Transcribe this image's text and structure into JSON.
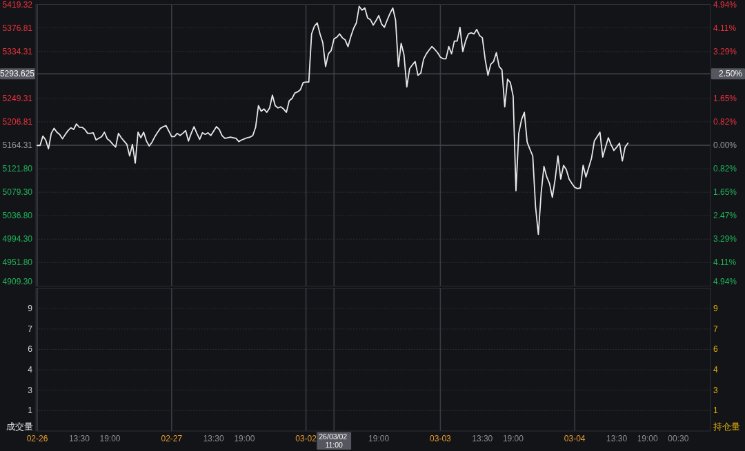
{
  "chart_data": [
    {
      "type": "line",
      "ylim": [
        4909.3,
        5419.32
      ],
      "y2lim": [
        -4.94,
        4.94
      ],
      "tick_labels": "y",
      "grid": "y",
      "categories": [
        "02-26",
        null,
        null,
        null,
        null,
        null,
        null,
        null,
        null,
        null,
        null,
        null,
        null,
        null,
        null,
        null,
        null,
        null,
        null,
        null,
        null,
        null,
        null,
        null,
        null,
        null,
        null,
        null,
        null,
        null,
        null,
        null,
        null,
        null,
        null,
        null,
        null,
        null,
        null,
        null,
        null,
        null,
        null,
        null,
        null,
        null,
        null,
        null,
        "02-27",
        null,
        null,
        null,
        null,
        null,
        null,
        null,
        null,
        null,
        null,
        null,
        null,
        null,
        null,
        null,
        null,
        null,
        null,
        null,
        null,
        null,
        null,
        null,
        null,
        null,
        null,
        null,
        null,
        null,
        null,
        null,
        null,
        null,
        null,
        null,
        null,
        null,
        null,
        null,
        null,
        null,
        null,
        null,
        null,
        null,
        null,
        null,
        "03-02",
        null,
        null,
        null,
        null,
        null,
        null,
        null,
        null,
        null,
        "26/03/02 11:00",
        null,
        null,
        null,
        null,
        null,
        null,
        null,
        null,
        null,
        null,
        null,
        null,
        null,
        null,
        null,
        null,
        null,
        null,
        null,
        null,
        null,
        null,
        null,
        null,
        null,
        null,
        null,
        null,
        null,
        null,
        null,
        null,
        null,
        null,
        null,
        null,
        null,
        "03-03",
        null,
        null,
        null,
        null,
        null,
        null,
        null,
        null,
        null,
        null,
        null,
        null,
        null,
        null,
        null,
        null,
        null,
        null,
        null,
        null,
        null,
        null,
        null,
        null,
        null,
        null,
        null,
        null,
        null,
        null,
        null,
        null,
        null,
        null,
        null,
        null,
        null,
        null,
        null,
        null,
        null,
        null,
        null,
        null,
        null,
        null,
        null,
        "03-04",
        null,
        null,
        null,
        null,
        null,
        null,
        null,
        null,
        null,
        null,
        null,
        null,
        null,
        null,
        null,
        null,
        null,
        null,
        null,
        null,
        null,
        null,
        null,
        null,
        null,
        null,
        null,
        null,
        null,
        null,
        null,
        null,
        null,
        null,
        null,
        null,
        null,
        null,
        null,
        null,
        null,
        null,
        null,
        null,
        null,
        null,
        null,
        null
      ],
      "yticks": [
        5419.32,
        5376.81,
        5334.31,
        5249.31,
        5206.81,
        5164.31,
        {
          "value": 5121.8,
          "label": "5121.80"
        },
        {
          "value": 5079.3,
          "label": "5079.30"
        },
        {
          "value": 5036.8,
          "label": "5036.80"
        },
        {
          "value": 4994.3,
          "label": "4994.30"
        },
        {
          "value": 4951.8,
          "label": "4951.80"
        },
        {
          "value": 4909.3,
          "label": "4909.30"
        }
      ],
      "y2ticks": [
        {
          "value": 4.94,
          "label": "4.94%"
        },
        {
          "value": 4.11,
          "label": "4.11%"
        },
        {
          "value": 3.29,
          "label": "3.29%"
        },
        {
          "value": 1.65,
          "label": "1.65%"
        },
        {
          "value": 0.82,
          "label": "0.82%"
        },
        {
          "value": 0,
          "label": "0.00%"
        },
        {
          "value": -0.82,
          "label": "0.82%"
        },
        {
          "value": -1.65,
          "label": "1.65%"
        },
        {
          "value": -2.47,
          "label": "2.47%"
        },
        {
          "value": -3.29,
          "label": "3.29%"
        },
        {
          "value": -4.11,
          "label": "4.11%"
        },
        {
          "value": -4.94,
          "label": "4.94%"
        }
      ],
      "ref_lines": [
        {
          "axis": "y",
          "value": 5164.31,
          "color": "#45474d"
        },
        {
          "axis": "y",
          "value": 5293.625,
          "label": "5293.625",
          "color": "#45474d"
        }
      ],
      "annotations": [
        "2.50%"
      ],
      "series": [
        {
          "color": "#e8e8e8",
          "values": [
            5164,
            5164,
            5181,
            5174,
            5158,
            5186,
            5195,
            5188,
            5184,
            5176,
            5184,
            5191,
            5196,
            5193,
            5203,
            5197,
            5197,
            5193,
            5186,
            5186,
            5187,
            5174,
            5177,
            5180,
            5188,
            5176,
            5172,
            5166,
            5161,
            5186,
            5178,
            5172,
            5166,
            5145,
            5166,
            5132,
            5188,
            5178,
            5188,
            5172,
            5163,
            5170,
            5180,
            5188,
            5195,
            5198,
            5200,
            5190,
            5180,
            5180,
            5186,
            5182,
            5186,
            5191,
            5172,
            5186,
            5198,
            5186,
            5175,
            5187,
            5184,
            5187,
            5182,
            5190,
            5198,
            5193,
            5182,
            5177,
            5178,
            5179,
            5178,
            5177,
            5171,
            5174,
            5176,
            5178,
            5179,
            5182,
            5197,
            5236,
            5226,
            5230,
            5224,
            5232,
            5255,
            5236,
            5232,
            5234,
            5230,
            5224,
            5245,
            5249,
            5259,
            5261,
            5265,
            5278,
            5279,
            5279,
            5366,
            5380,
            5386,
            5366,
            5350,
            5307,
            5330,
            5336,
            5357,
            5360,
            5366,
            5359,
            5355,
            5343,
            5361,
            5376,
            5386,
            5416,
            5409,
            5413,
            5395,
            5392,
            5382,
            5390,
            5399,
            5384,
            5378,
            5391,
            5403,
            5413,
            5391,
            5307,
            5349,
            5328,
            5270,
            5303,
            5310,
            5316,
            5291,
            5295,
            5320,
            5330,
            5337,
            5343,
            5338,
            5332,
            5324,
            5321,
            5321,
            5343,
            5330,
            5353,
            5353,
            5378,
            5334,
            5353,
            5366,
            5368,
            5366,
            5374,
            5363,
            5359,
            5320,
            5291,
            5311,
            5316,
            5332,
            5307,
            5301,
            5234,
            5284,
            5278,
            5253,
            5082,
            5186,
            5211,
            5224,
            5170,
            5157,
            5145,
            5053,
            5003,
            5078,
            5126,
            5107,
            5095,
            5070,
            5103,
            5145,
            5103,
            5128,
            5120,
            5103,
            5095,
            5088,
            5086,
            5087,
            5128,
            5107,
            5124,
            5141,
            5172,
            5180,
            5188,
            5143,
            5161,
            5178,
            5165,
            5155,
            5161,
            5168,
            5136,
            5161,
            5168,
            null,
            null,
            null,
            null,
            null,
            null,
            null,
            null,
            null,
            null,
            null,
            null,
            null,
            null,
            null,
            null,
            null,
            null,
            null,
            null,
            null,
            null,
            null,
            null,
            null,
            null,
            null,
            null,
            null
          ]
        }
      ]
    },
    {
      "type": "bar",
      "ylim": [
        0,
        10.5
      ],
      "y2lim": [
        0,
        10.5
      ],
      "grid": "y",
      "ylabel": "成交量",
      "y2label": "持仓量",
      "categories": [
        "02-26",
        null,
        null,
        null,
        null,
        null,
        null,
        null,
        null,
        null,
        null,
        null,
        null,
        null,
        null,
        "13:30",
        null,
        null,
        null,
        null,
        null,
        null,
        null,
        null,
        null,
        null,
        "19:00",
        null,
        null,
        null,
        null,
        null,
        null,
        null,
        null,
        null,
        null,
        null,
        null,
        null,
        null,
        null,
        null,
        null,
        null,
        null,
        null,
        null,
        "02-27",
        null,
        null,
        null,
        null,
        null,
        null,
        null,
        null,
        null,
        null,
        null,
        null,
        null,
        null,
        "13:30",
        null,
        null,
        null,
        null,
        null,
        null,
        null,
        null,
        null,
        null,
        "19:00",
        null,
        null,
        null,
        null,
        null,
        null,
        null,
        null,
        null,
        null,
        null,
        null,
        null,
        null,
        null,
        null,
        null,
        null,
        null,
        null,
        null,
        "03-02",
        null,
        null,
        null,
        null,
        null,
        null,
        null,
        null,
        null,
        "26/03/02 11:00",
        null,
        null,
        null,
        null,
        null,
        null,
        null,
        null,
        null,
        null,
        null,
        null,
        null,
        null,
        null,
        "19:00",
        null,
        null,
        null,
        null,
        null,
        null,
        null,
        null,
        null,
        null,
        null,
        null,
        null,
        null,
        null,
        null,
        null,
        null,
        null,
        null,
        null,
        "03-03",
        null,
        null,
        null,
        null,
        null,
        null,
        null,
        null,
        null,
        null,
        null,
        null,
        null,
        null,
        "13:30",
        null,
        null,
        null,
        null,
        null,
        null,
        null,
        null,
        null,
        null,
        "19:00",
        null,
        null,
        null,
        null,
        null,
        null,
        null,
        null,
        null,
        null,
        null,
        null,
        null,
        null,
        null,
        null,
        null,
        null,
        null,
        null,
        null,
        "03-04",
        null,
        null,
        null,
        null,
        null,
        null,
        null,
        null,
        null,
        null,
        null,
        null,
        null,
        null,
        "13:30",
        null,
        null,
        null,
        null,
        null,
        null,
        null,
        null,
        null,
        null,
        "19:00",
        null,
        null,
        null,
        null,
        null,
        null,
        null,
        null,
        null,
        null,
        "00:30",
        null,
        null,
        null,
        null,
        null,
        null,
        null,
        null,
        null,
        null,
        null
      ],
      "yticks": [
        9,
        {
          "value": 7.5,
          "label": "7"
        },
        6,
        {
          "value": 4.5,
          "label": "4"
        },
        3,
        {
          "value": 1.5,
          "label": "1"
        }
      ],
      "y2ticks": [
        9,
        {
          "value": 7.5,
          "label": "7"
        },
        6,
        {
          "value": 4.5,
          "label": "4"
        },
        3,
        {
          "value": 1.5,
          "label": "1"
        }
      ]
    }
  ]
}
